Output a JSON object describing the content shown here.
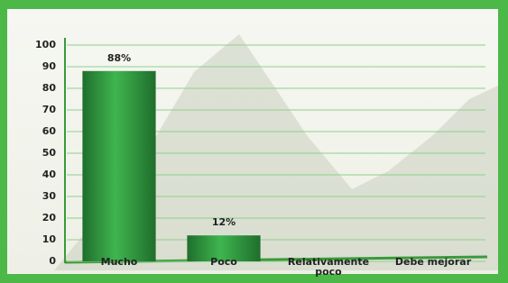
{
  "chart_data": {
    "type": "bar",
    "categories": [
      "Mucho",
      "Poco",
      "Relativamente poco",
      "Debe mejorar"
    ],
    "values": [
      88,
      12,
      0,
      0
    ],
    "value_labels": [
      "88%",
      "12%",
      null,
      null
    ],
    "color": "#2e9a3e",
    "ylim": [
      0,
      100
    ],
    "yticks": [
      0,
      10,
      20,
      30,
      40,
      50,
      60,
      70,
      80,
      90,
      100
    ],
    "grid": true
  }
}
